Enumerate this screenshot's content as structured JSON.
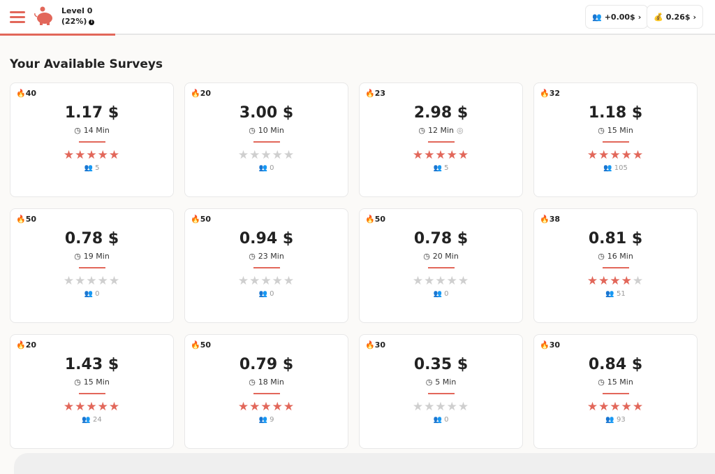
{
  "header": {
    "level": "Level 0",
    "percent": "(22%)",
    "progress": 22,
    "referral": "+0.00$",
    "balance": "0.26$"
  },
  "title": "Your Available Surveys",
  "colors": {
    "accent": "#e2675a",
    "star_empty": "#cfcfcf"
  },
  "surveys": [
    {
      "hot": "40",
      "price": "1.17 $",
      "duration": "14 Min",
      "rating": 5,
      "count": "5"
    },
    {
      "hot": "20",
      "price": "3.00 $",
      "duration": "10 Min",
      "rating": 0,
      "count": "0"
    },
    {
      "hot": "23",
      "price": "2.98 $",
      "duration": "12 Min",
      "rating": 5,
      "count": "5",
      "webcam": true
    },
    {
      "hot": "32",
      "price": "1.18 $",
      "duration": "15 Min",
      "rating": 5,
      "count": "105"
    },
    {
      "hot": "50",
      "price": "0.78 $",
      "duration": "19 Min",
      "rating": 0,
      "count": "0"
    },
    {
      "hot": "50",
      "price": "0.94 $",
      "duration": "23 Min",
      "rating": 0,
      "count": "0"
    },
    {
      "hot": "50",
      "price": "0.78 $",
      "duration": "20 Min",
      "rating": 0,
      "count": "0"
    },
    {
      "hot": "38",
      "price": "0.81 $",
      "duration": "16 Min",
      "rating": 4,
      "count": "51"
    },
    {
      "hot": "20",
      "price": "1.43 $",
      "duration": "15 Min",
      "rating": 5,
      "count": "24"
    },
    {
      "hot": "50",
      "price": "0.79 $",
      "duration": "18 Min",
      "rating": 5,
      "count": "9"
    },
    {
      "hot": "30",
      "price": "0.35 $",
      "duration": "5 Min",
      "rating": 0,
      "count": "0"
    },
    {
      "hot": "30",
      "price": "0.84 $",
      "duration": "15 Min",
      "rating": 5,
      "count": "93"
    }
  ]
}
